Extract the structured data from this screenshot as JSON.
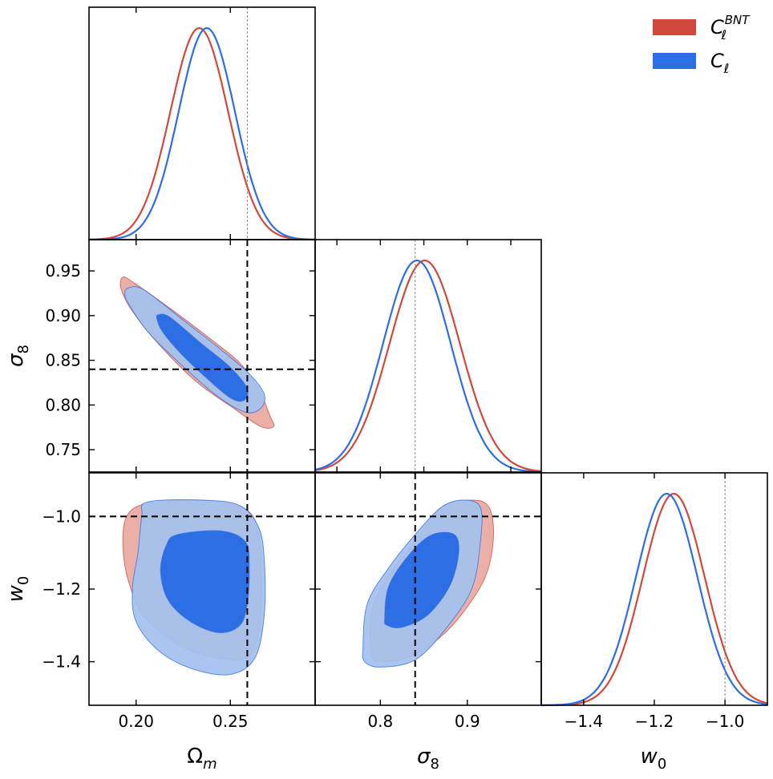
{
  "chart_data": {
    "type": "corner-plot",
    "parameters": [
      {
        "id": "omega_m",
        "label_main": "Ω",
        "label_sub": "m",
        "range": [
          0.175,
          0.295
        ],
        "ticks": [
          0.2,
          0.25
        ],
        "tick_labels": [
          "0.20",
          "0.25"
        ],
        "fiducial": 0.259
      },
      {
        "id": "sigma_8",
        "label_main": "σ",
        "label_sub": "8",
        "range": [
          0.725,
          0.985
        ],
        "ticks": [
          0.75,
          0.8,
          0.85,
          0.9,
          0.95
        ],
        "tick_labels": [
          "0.75",
          "0.80",
          "0.85",
          "0.90",
          "0.95"
        ],
        "fiducial": 0.84
      },
      {
        "id": "w_0",
        "label_main": "w",
        "label_sub": "0",
        "range": [
          -1.52,
          -0.88
        ],
        "ticks": [
          -1.4,
          -1.2,
          -1.0
        ],
        "tick_labels": [
          "−1.4",
          "−1.2",
          "−1.0"
        ],
        "fiducial": -1.0
      }
    ],
    "bottom_tick_overrides": {
      "sigma_8": {
        "ticks": [
          0.8,
          0.9
        ],
        "tick_labels": [
          "0.8",
          "0.9"
        ]
      }
    },
    "series": [
      {
        "name": "C_ℓ^BNT",
        "legend_main": "C",
        "legend_sub": "ℓ",
        "legend_sup": "BNT",
        "color": "#d1493b",
        "fill_outer": "#e8a79f",
        "fill_inner": "#d1493b",
        "marginals": {
          "omega_m": {
            "mean": 0.2335,
            "sigma": 0.0153
          },
          "sigma_8": {
            "mean": 0.851,
            "sigma": 0.0405
          },
          "w_0": {
            "mean": -1.145,
            "sigma": 0.0875
          }
        },
        "contours": {
          "sigma_8|omega_m": {
            "outer": [
              [
                0.193,
                0.943
              ],
              [
                0.2,
                0.935
              ],
              [
                0.22,
                0.905
              ],
              [
                0.24,
                0.873
              ],
              [
                0.255,
                0.847
              ],
              [
                0.265,
                0.818
              ],
              [
                0.271,
                0.788
              ],
              [
                0.273,
                0.776
              ],
              [
                0.266,
                0.776
              ],
              [
                0.252,
                0.796
              ],
              [
                0.232,
                0.826
              ],
              [
                0.212,
                0.868
              ],
              [
                0.198,
                0.905
              ],
              [
                0.192,
                0.93
              ]
            ],
            "inner": []
          },
          "w_0|omega_m": {
            "outer": [
              [
                0.195,
                -1.0
              ],
              [
                0.205,
                -0.965
              ],
              [
                0.23,
                -0.955
              ],
              [
                0.25,
                -0.965
              ],
              [
                0.262,
                -1.0
              ],
              [
                0.266,
                -1.1
              ],
              [
                0.266,
                -1.28
              ],
              [
                0.26,
                -1.385
              ],
              [
                0.245,
                -1.39
              ],
              [
                0.225,
                -1.36
              ],
              [
                0.205,
                -1.28
              ],
              [
                0.196,
                -1.18
              ],
              [
                0.193,
                -1.08
              ]
            ],
            "inner": []
          },
          "w_0|sigma_8": {
            "outer": [
              [
                0.79,
                -1.38
              ],
              [
                0.79,
                -1.26
              ],
              [
                0.81,
                -1.16
              ],
              [
                0.84,
                -1.07
              ],
              [
                0.87,
                -0.975
              ],
              [
                0.905,
                -0.955
              ],
              [
                0.925,
                -0.975
              ],
              [
                0.93,
                -1.06
              ],
              [
                0.92,
                -1.17
              ],
              [
                0.89,
                -1.28
              ],
              [
                0.86,
                -1.35
              ],
              [
                0.83,
                -1.39
              ],
              [
                0.8,
                -1.4
              ]
            ],
            "inner": []
          }
        }
      },
      {
        "name": "C_ℓ",
        "legend_main": "C",
        "legend_sub": "ℓ",
        "legend_sup": "",
        "color": "#2d6ee4",
        "fill_outer": "#a3c1ef",
        "fill_inner": "#2d6ee4",
        "marginals": {
          "omega_m": {
            "mean": 0.2375,
            "sigma": 0.0149
          },
          "sigma_8": {
            "mean": 0.842,
            "sigma": 0.039
          },
          "w_0": {
            "mean": -1.165,
            "sigma": 0.087
          }
        },
        "contours": {
          "sigma_8|omega_m": {
            "outer": [
              [
                0.196,
                0.931
              ],
              [
                0.204,
                0.929
              ],
              [
                0.225,
                0.895
              ],
              [
                0.245,
                0.862
              ],
              [
                0.26,
                0.835
              ],
              [
                0.268,
                0.812
              ],
              [
                0.266,
                0.796
              ],
              [
                0.258,
                0.792
              ],
              [
                0.243,
                0.81
              ],
              [
                0.225,
                0.843
              ],
              [
                0.207,
                0.88
              ],
              [
                0.196,
                0.913
              ],
              [
                0.194,
                0.925
              ]
            ],
            "inner": [
              [
                0.212,
                0.901
              ],
              [
                0.218,
                0.898
              ],
              [
                0.235,
                0.868
              ],
              [
                0.25,
                0.842
              ],
              [
                0.259,
                0.818
              ],
              [
                0.257,
                0.805
              ],
              [
                0.25,
                0.808
              ],
              [
                0.238,
                0.829
              ],
              [
                0.224,
                0.857
              ],
              [
                0.214,
                0.882
              ],
              [
                0.211,
                0.897
              ]
            ]
          },
          "w_0|omega_m": {
            "outer": [
              [
                0.206,
                -0.96
              ],
              [
                0.235,
                -0.955
              ],
              [
                0.255,
                -0.97
              ],
              [
                0.265,
                -1.03
              ],
              [
                0.268,
                -1.12
              ],
              [
                0.268,
                -1.27
              ],
              [
                0.263,
                -1.39
              ],
              [
                0.25,
                -1.435
              ],
              [
                0.23,
                -1.42
              ],
              [
                0.212,
                -1.37
              ],
              [
                0.2,
                -1.29
              ],
              [
                0.198,
                -1.2
              ],
              [
                0.201,
                -1.1
              ],
              [
                0.203,
                -1.0
              ]
            ],
            "inner": [
              [
                0.222,
                -1.05
              ],
              [
                0.245,
                -1.04
              ],
              [
                0.258,
                -1.07
              ],
              [
                0.26,
                -1.14
              ],
              [
                0.259,
                -1.24
              ],
              [
                0.255,
                -1.3
              ],
              [
                0.244,
                -1.32
              ],
              [
                0.229,
                -1.29
              ],
              [
                0.217,
                -1.23
              ],
              [
                0.213,
                -1.15
              ],
              [
                0.216,
                -1.08
              ]
            ]
          },
          "w_0|sigma_8": {
            "outer": [
              [
                0.78,
                -1.36
              ],
              [
                0.785,
                -1.24
              ],
              [
                0.81,
                -1.14
              ],
              [
                0.84,
                -1.05
              ],
              [
                0.87,
                -0.975
              ],
              [
                0.895,
                -0.955
              ],
              [
                0.915,
                -0.975
              ],
              [
                0.915,
                -1.07
              ],
              [
                0.905,
                -1.2
              ],
              [
                0.875,
                -1.31
              ],
              [
                0.84,
                -1.395
              ],
              [
                0.8,
                -1.415
              ],
              [
                0.782,
                -1.4
              ]
            ],
            "inner": [
              [
                0.805,
                -1.28
              ],
              [
                0.81,
                -1.19
              ],
              [
                0.835,
                -1.1
              ],
              [
                0.86,
                -1.05
              ],
              [
                0.885,
                -1.05
              ],
              [
                0.89,
                -1.1
              ],
              [
                0.88,
                -1.19
              ],
              [
                0.855,
                -1.27
              ],
              [
                0.825,
                -1.305
              ],
              [
                0.808,
                -1.3
              ]
            ]
          }
        }
      }
    ]
  }
}
